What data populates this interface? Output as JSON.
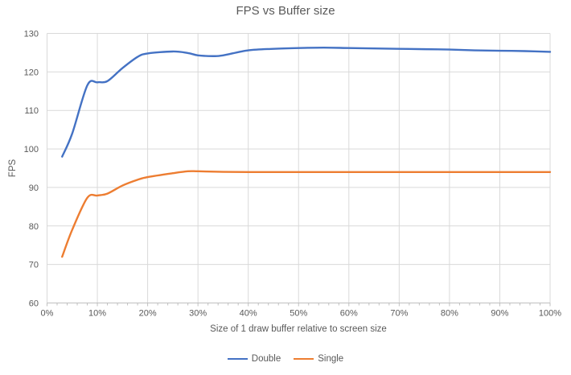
{
  "title": "FPS vs Buffer size",
  "colors": {
    "background": "#ffffff",
    "gridline": "#d9d9d9",
    "axis_line": "#bfbfbf",
    "tick_mark": "#bfbfbf",
    "text": "#595959",
    "series_double": "#4472c4",
    "series_single": "#ed7d31"
  },
  "chart_data": {
    "type": "line",
    "title": "FPS vs Buffer size",
    "xlabel": "Size of 1 draw buffer relative to screen size",
    "ylabel": "FPS",
    "xlim": [
      0,
      100
    ],
    "ylim": [
      60,
      130
    ],
    "grid": true,
    "smooth": true,
    "legend_position": "bottom",
    "x_major_ticks": [
      0,
      10,
      20,
      30,
      40,
      50,
      60,
      70,
      80,
      90,
      100
    ],
    "x_tick_labels": [
      "0%",
      "10%",
      "20%",
      "30%",
      "40%",
      "50%",
      "60%",
      "70%",
      "80%",
      "90%",
      "100%"
    ],
    "x_minor_tick_step": 2,
    "y_ticks": [
      60,
      70,
      80,
      90,
      100,
      110,
      120,
      130
    ],
    "series": [
      {
        "name": "Double",
        "color": "#4472c4",
        "x": [
          3,
          5,
          8,
          10,
          12,
          15,
          18,
          20,
          25,
          28,
          30,
          33,
          35,
          40,
          45,
          50,
          55,
          60,
          65,
          70,
          75,
          80,
          85,
          90,
          95,
          100
        ],
        "y": [
          98,
          104,
          116.5,
          117.3,
          117.6,
          121,
          123.9,
          124.8,
          125.3,
          124.9,
          124.3,
          124.1,
          124.3,
          125.6,
          126.0,
          126.2,
          126.3,
          126.2,
          126.1,
          126.0,
          125.9,
          125.8,
          125.6,
          125.5,
          125.4,
          125.2
        ]
      },
      {
        "name": "Single",
        "color": "#ed7d31",
        "x": [
          3,
          5,
          8,
          10,
          12,
          15,
          18,
          20,
          25,
          28,
          30,
          35,
          40,
          45,
          50,
          55,
          60,
          65,
          70,
          75,
          80,
          85,
          90,
          95,
          100
        ],
        "y": [
          72,
          79,
          87.3,
          87.9,
          88.4,
          90.5,
          92,
          92.7,
          93.7,
          94.2,
          94.2,
          94.05,
          94,
          94,
          94,
          94,
          94,
          94,
          94,
          94,
          94,
          94,
          94,
          94,
          94
        ]
      }
    ]
  }
}
